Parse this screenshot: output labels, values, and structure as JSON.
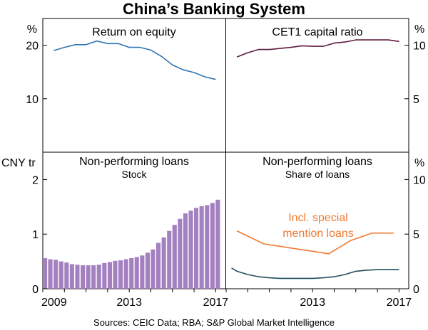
{
  "title": "China’s Banking System",
  "source": "Sources: CEIC Data; RBA; S&P Global Market Intelligence",
  "colors": {
    "roe": "#2e75b6",
    "cet1": "#5c1a3d",
    "npl_bar": "#a380c0",
    "incl_special": "#f07a30",
    "npl_share": "#1f4e5a"
  },
  "x_axis": {
    "ticks": [
      "2009",
      "2013",
      "2017"
    ]
  },
  "chart_data": [
    {
      "type": "line",
      "title": "Return on equity",
      "unit": "%",
      "ylim": [
        0,
        25
      ],
      "yticks": [
        "10",
        "20"
      ],
      "series": [
        {
          "x": [
            2009.5,
            2010,
            2010.5,
            2011,
            2011.5,
            2012,
            2012.5,
            2013,
            2013.5,
            2014,
            2014.5,
            2015,
            2015.5,
            2016,
            2016.5,
            2017
          ],
          "values": [
            19.0,
            19.6,
            20.1,
            20.1,
            20.8,
            20.3,
            20.3,
            19.6,
            19.6,
            19.1,
            17.9,
            16.3,
            15.4,
            14.9,
            14.1,
            13.6
          ]
        }
      ]
    },
    {
      "type": "line",
      "title": "CET1 capital ratio",
      "unit": "%",
      "ylim": [
        0,
        12.5
      ],
      "yticks": [
        "5",
        "10"
      ],
      "series": [
        {
          "x": [
            2009.5,
            2010,
            2010.5,
            2011,
            2011.5,
            2012,
            2012.5,
            2013,
            2013.5,
            2014,
            2014.5,
            2015,
            2015.5,
            2016,
            2016.5,
            2017
          ],
          "values": [
            8.9,
            9.3,
            9.6,
            9.6,
            9.7,
            9.8,
            9.95,
            9.9,
            9.9,
            10.2,
            10.3,
            10.5,
            10.5,
            10.5,
            10.5,
            10.35
          ]
        }
      ]
    },
    {
      "type": "bar",
      "title": "Non-performing loans",
      "subtitle": "Stock",
      "unit": "CNY tr",
      "ylim": [
        0,
        2.5
      ],
      "yticks": [
        "0",
        "1",
        "2"
      ],
      "x": [
        2009.0,
        2009.25,
        2009.5,
        2009.75,
        2010.0,
        2010.25,
        2010.5,
        2010.75,
        2011.0,
        2011.25,
        2011.5,
        2011.75,
        2012.0,
        2012.25,
        2012.5,
        2012.75,
        2013.0,
        2013.25,
        2013.5,
        2013.75,
        2014.0,
        2014.25,
        2014.5,
        2014.75,
        2015.0,
        2015.25,
        2015.5,
        2015.75,
        2016.0,
        2016.25,
        2016.5,
        2016.75,
        2017.0
      ],
      "values": [
        0.56,
        0.54,
        0.53,
        0.5,
        0.48,
        0.45,
        0.44,
        0.43,
        0.43,
        0.43,
        0.44,
        0.47,
        0.49,
        0.51,
        0.52,
        0.54,
        0.56,
        0.58,
        0.61,
        0.66,
        0.72,
        0.84,
        0.94,
        1.06,
        1.17,
        1.28,
        1.38,
        1.43,
        1.48,
        1.51,
        1.53,
        1.57,
        1.63
      ]
    },
    {
      "type": "line",
      "title": "Non-performing loans",
      "subtitle": "Share of loans",
      "unit": "%",
      "ylim": [
        0,
        12.5
      ],
      "yticks": [
        "0",
        "5",
        "10"
      ],
      "annotation": "Incl. special mention loans",
      "series": [
        {
          "key": "incl_special",
          "x": [
            2009.5,
            2010.75,
            2011.75,
            2012.75,
            2013.75,
            2014.75,
            2015.75,
            2016.75
          ],
          "values": [
            5.3,
            4.1,
            3.8,
            3.5,
            3.2,
            4.4,
            5.1,
            5.1
          ]
        },
        {
          "key": "npl_share",
          "x": [
            2009.25,
            2009.5,
            2010,
            2010.5,
            2011,
            2011.5,
            2012,
            2012.5,
            2013,
            2013.5,
            2014,
            2014.5,
            2015,
            2015.5,
            2016,
            2016.5,
            2017
          ],
          "values": [
            1.9,
            1.6,
            1.3,
            1.1,
            1.0,
            0.95,
            0.95,
            0.95,
            0.95,
            1.0,
            1.1,
            1.3,
            1.6,
            1.7,
            1.75,
            1.75,
            1.75
          ]
        }
      ]
    }
  ]
}
